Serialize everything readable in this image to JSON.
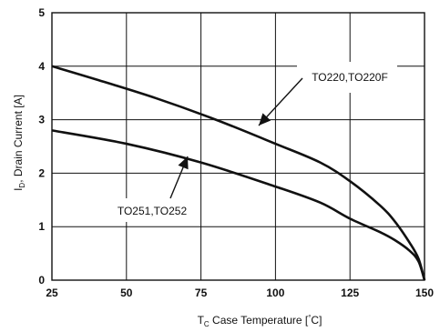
{
  "chart_data": {
    "type": "line",
    "x_axis": {
      "label_main": "T",
      "label_sub": "C",
      "label_rest": " Case Temperature [",
      "label_deg": "°",
      "label_unit": "C]",
      "lim": [
        25,
        150
      ],
      "ticks": [
        "25",
        "50",
        "75",
        "100",
        "125",
        "150"
      ]
    },
    "y_axis": {
      "label_main": "I",
      "label_sub": "D",
      "label_rest": ", Drain Current [A]",
      "lim": [
        0,
        5
      ],
      "ticks": [
        "0",
        "1",
        "2",
        "3",
        "4",
        "5"
      ]
    },
    "grid": true,
    "series": [
      {
        "name": "TO220,TO220F",
        "x": [
          25,
          40,
          60,
          80,
          100,
          115,
          125,
          135,
          140,
          145,
          148,
          150
        ],
        "y": [
          4.0,
          3.75,
          3.4,
          3.0,
          2.55,
          2.2,
          1.85,
          1.4,
          1.1,
          0.7,
          0.4,
          0.0
        ]
      },
      {
        "name": "TO251,TO252",
        "x": [
          25,
          50,
          75,
          100,
          115,
          125,
          135,
          140,
          145,
          148,
          150
        ],
        "y": [
          2.8,
          2.55,
          2.2,
          1.75,
          1.45,
          1.15,
          0.9,
          0.75,
          0.55,
          0.35,
          0.0
        ]
      }
    ],
    "annotations": [
      {
        "text": "TO220,TO220F",
        "series": 0
      },
      {
        "text": "TO251,TO252",
        "series": 1
      }
    ],
    "colors": {
      "line": "#111111",
      "grid": "#111111",
      "background": "#ffffff"
    }
  }
}
